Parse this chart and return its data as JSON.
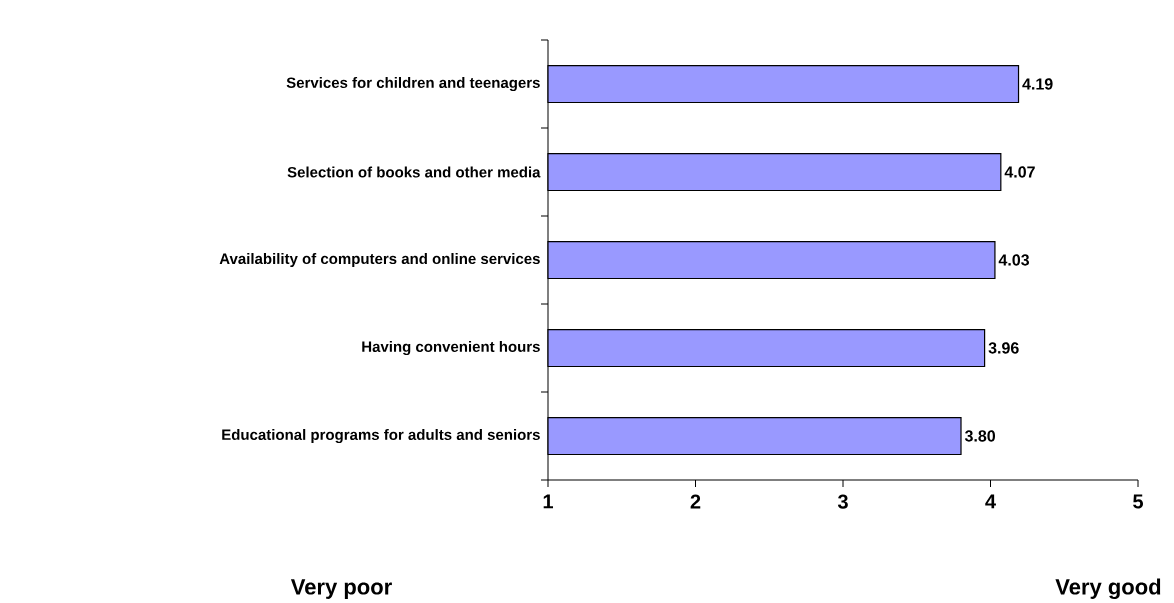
{
  "chart_data": {
    "type": "bar",
    "orientation": "horizontal",
    "categories": [
      "Services for children and teenagers",
      "Selection of books and other media",
      "Availability of computers and online services",
      "Having convenient hours",
      "Educational programs for adults and seniors"
    ],
    "values": [
      4.19,
      4.07,
      4.03,
      3.96,
      3.8
    ],
    "value_labels": [
      "4.19",
      "4.07",
      "4.03",
      "3.96",
      "3.80"
    ],
    "color": "#9999ff",
    "xlim": [
      1,
      5
    ],
    "xticks": [
      1,
      2,
      3,
      4,
      5
    ],
    "annotations": [
      "Very poor",
      "Very good"
    ]
  }
}
